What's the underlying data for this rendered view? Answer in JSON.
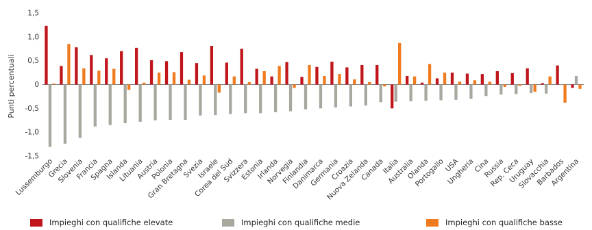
{
  "chart_data": {
    "type": "bar",
    "ylabel": "Punti percentuali",
    "ylim": [
      -1.5,
      1.5
    ],
    "yticks": [
      "-1,5",
      "-1,0",
      "-0,5",
      "0",
      "0,5",
      "1,0",
      "1,5"
    ],
    "grid": false,
    "legend_position": "bottom",
    "categories": [
      "Lussemburgo",
      "Grecia",
      "Slovenia",
      "Francia",
      "Spagna",
      "Islanda",
      "Lituania",
      "Austria",
      "Polonia",
      "Gran Bretagna",
      "Svezia",
      "Israele",
      "Corea del Sud",
      "Svizzera",
      "Estonia",
      "Irlanda",
      "Norvegia",
      "Finlandia",
      "Danimarca",
      "Germania",
      "Croazia",
      "Nuova Zelanda",
      "Canada",
      "Italia",
      "Australia",
      "Olanda",
      "Portogallo",
      "USA",
      "Ungheria",
      "Cina",
      "Russia",
      "Rep. Ceca",
      "Uruguay",
      "Slovacchia",
      "Barbados",
      "Argentina"
    ],
    "series": [
      {
        "name": "Impieghi con qualifiche elevate",
        "color": "#c0161b",
        "values": [
          1.23,
          0.39,
          0.78,
          0.62,
          0.55,
          0.7,
          0.77,
          0.51,
          0.49,
          0.68,
          0.45,
          0.81,
          0.46,
          0.75,
          0.33,
          0.17,
          0.47,
          0.16,
          0.37,
          0.48,
          0.36,
          0.41,
          0.41,
          -0.5,
          0.18,
          0.04,
          0.13,
          0.25,
          0.23,
          0.22,
          0.28,
          0.24,
          0.34,
          0.03,
          0.4,
          -0.07
        ]
      },
      {
        "name": "Impieghi con qualifiche medie",
        "color": "#a8a89f",
        "values": [
          -1.31,
          -1.24,
          -1.12,
          -0.88,
          -0.85,
          -0.81,
          -0.78,
          -0.75,
          -0.74,
          -0.74,
          -0.65,
          -0.64,
          -0.62,
          -0.6,
          -0.6,
          -0.58,
          -0.56,
          -0.52,
          -0.5,
          -0.48,
          -0.46,
          -0.44,
          -0.37,
          -0.36,
          -0.35,
          -0.34,
          -0.33,
          -0.32,
          -0.3,
          -0.24,
          -0.21,
          -0.2,
          -0.18,
          -0.19,
          0.0,
          0.18
        ]
      },
      {
        "name": "Impieghi con qualifiche basse",
        "color": "#f07a1e",
        "values": [
          0.02,
          0.85,
          0.34,
          0.29,
          0.33,
          -0.11,
          0.04,
          0.25,
          0.26,
          0.1,
          0.19,
          -0.17,
          0.17,
          0.05,
          0.28,
          0.39,
          -0.07,
          0.41,
          0.18,
          0.22,
          0.11,
          0.05,
          -0.04,
          0.87,
          0.17,
          0.43,
          0.25,
          0.06,
          0.09,
          0.06,
          -0.05,
          -0.03,
          -0.15,
          0.17,
          -0.38,
          -0.09
        ]
      }
    ]
  }
}
